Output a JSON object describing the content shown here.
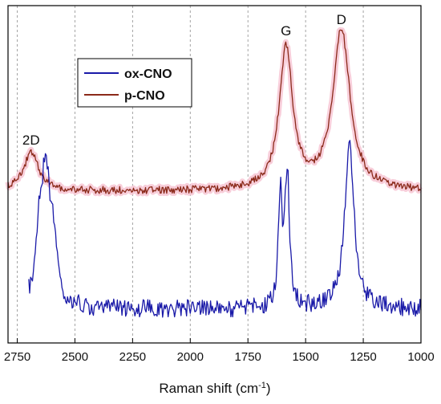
{
  "chart_data": {
    "type": "line",
    "title": "",
    "xlabel": "Raman shift (cm",
    "xlabel_sup": "-1",
    "xlabel_close": ")",
    "ylabel": "",
    "xlim": [
      2790,
      1000
    ],
    "x_reversed": true,
    "y_ticks_shown": false,
    "grid": "vertical dashed",
    "xticks": [
      2750,
      2500,
      2250,
      2000,
      1750,
      1500,
      1250,
      1000
    ],
    "xtick_labels": [
      "2750",
      "2500",
      "2250",
      "2000",
      "1750",
      "1500",
      "1250",
      "1000"
    ],
    "legend": {
      "placement": "top-left"
    },
    "annotations": [
      {
        "text": "2D",
        "x": 2690
      },
      {
        "text": "G",
        "x": 1585
      },
      {
        "text": "D",
        "x": 1345
      }
    ],
    "series": [
      {
        "name": "ox-CNO",
        "color": "#1a1aa8",
        "peaks": [
          {
            "x": 2625,
            "height": 0.95,
            "width": 25
          },
          {
            "x": 2655,
            "height": 0.4,
            "width": 18
          },
          {
            "x": 2590,
            "height": 0.3,
            "width": 15
          },
          {
            "x": 1610,
            "height": 0.75,
            "width": 10
          },
          {
            "x": 1580,
            "height": 0.95,
            "width": 12
          },
          {
            "x": 1310,
            "height": 1.15,
            "width": 25
          }
        ],
        "x_start": 2700,
        "x_end": 1000
      },
      {
        "name": "p-CNO",
        "color": "#8b2a1a",
        "highlight_color": "#f7c6d4",
        "peaks": [
          {
            "x": 2690,
            "height": 0.27,
            "width": 40
          },
          {
            "x": 1585,
            "height": 1.0,
            "width": 35
          },
          {
            "x": 1345,
            "height": 1.13,
            "width": 45
          }
        ],
        "x_start": 2790,
        "x_end": 1000
      }
    ]
  }
}
